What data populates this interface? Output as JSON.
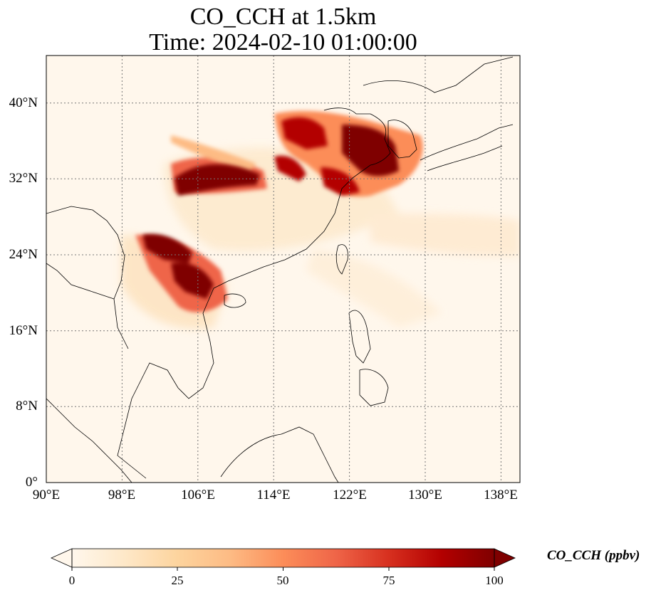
{
  "title": {
    "line1": "CO_CCH at 1.5km",
    "line2": "Time: 2024-02-10 01:00:00"
  },
  "map": {
    "lon_range": [
      90,
      140
    ],
    "lat_range": [
      0,
      45
    ],
    "lon_ticks": [
      "90°E",
      "98°E",
      "106°E",
      "114°E",
      "122°E",
      "130°E",
      "138°E"
    ],
    "lat_ticks": [
      "0°",
      "8°N",
      "16°N",
      "24°N",
      "32°N",
      "40°N"
    ],
    "gridlines": true
  },
  "colorbar": {
    "label": "CO_CCH (ppbv)",
    "ticks": [
      "0",
      "25",
      "50",
      "75",
      "100"
    ],
    "range": [
      0,
      100
    ],
    "colormap": "OrRd",
    "colors": [
      "#fff7ec",
      "#fee8c8",
      "#fdd49e",
      "#fdbb84",
      "#fc8d59",
      "#ef6548",
      "#d7301f",
      "#b30000",
      "#7f0000"
    ],
    "extend": "both"
  }
}
